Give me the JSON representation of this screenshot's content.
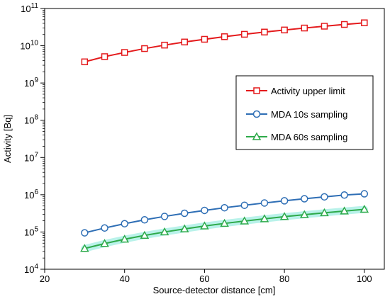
{
  "chart_data": {
    "type": "line",
    "xlabel": "Source-detector distance [cm]",
    "ylabel": "Activity [Bq]",
    "xlim": [
      20,
      105
    ],
    "ylim": [
      10000,
      100000000000
    ],
    "yscale": "log",
    "x_ticks": [
      20,
      40,
      60,
      80,
      100
    ],
    "x_tick_labels": [
      "20",
      "40",
      "60",
      "80",
      "100"
    ],
    "y_ticks": [
      10000,
      100000,
      1000000,
      10000000,
      100000000,
      1000000000,
      10000000000,
      100000000000
    ],
    "y_tick_exponents": [
      "4",
      "5",
      "6",
      "7",
      "8",
      "9",
      "10",
      "11"
    ],
    "y_tick_base": "10",
    "grid": false,
    "legend_position": "right",
    "x": [
      30,
      35,
      40,
      45,
      50,
      55,
      60,
      65,
      70,
      75,
      80,
      85,
      90,
      95,
      100
    ],
    "series": [
      {
        "name": "Activity upper limit",
        "color": "#e41a1c",
        "marker": "square",
        "values": [
          3700000000,
          5100000000,
          6600000000,
          8400000000,
          10400000000,
          12600000000,
          14900000000,
          17500000000,
          20300000000,
          23300000000,
          26500000000,
          29900000000,
          33500000000,
          37300000000,
          41300000000
        ]
      },
      {
        "name": "MDA 10s sampling",
        "color": "#2e6eb5",
        "marker": "circle",
        "values": [
          95000,
          128000,
          167000,
          212000,
          262000,
          318000,
          380000,
          448000,
          522000,
          602000,
          688000,
          780000,
          878000,
          982000,
          1060000
        ]
      },
      {
        "name": "MDA 60s sampling",
        "color": "#2eaa4a",
        "marker": "triangle",
        "values": [
          36000,
          49000,
          64000,
          81000,
          100000,
          121000,
          145000,
          170000,
          197000,
          226000,
          258000,
          291000,
          327000,
          365000,
          405000
        ]
      }
    ]
  }
}
